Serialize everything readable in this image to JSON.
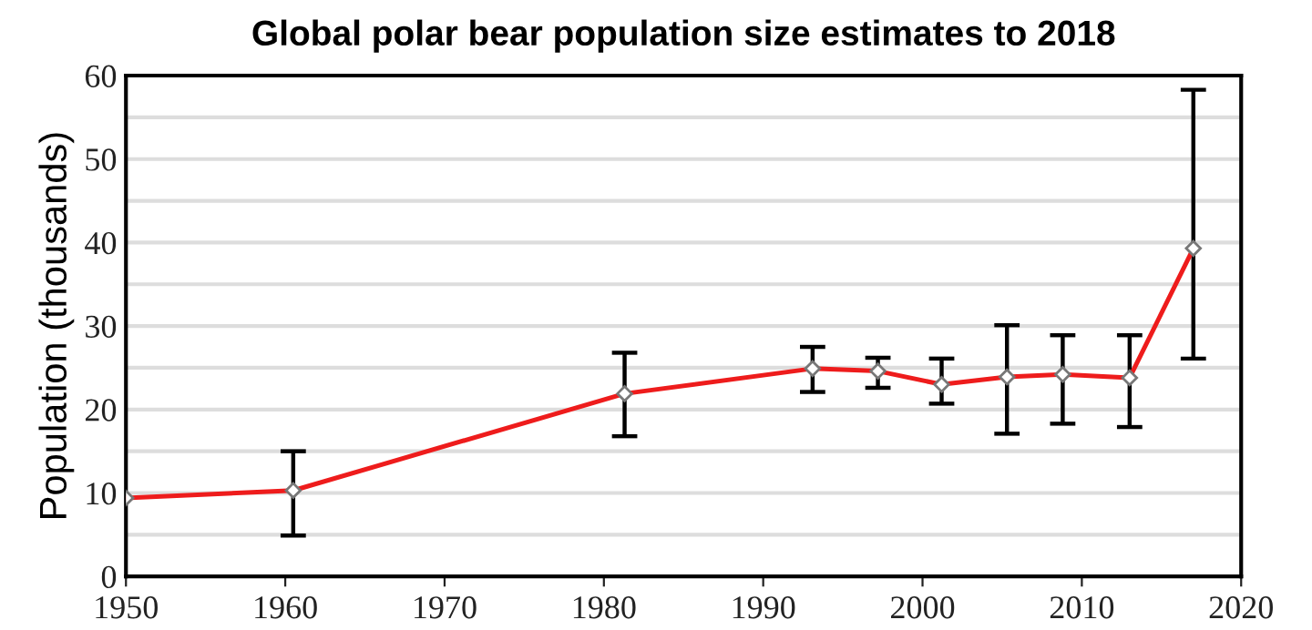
{
  "chart_data": {
    "type": "line",
    "title": "Global polar bear population size estimates to 2018",
    "ylabel": "Population (thousands)",
    "x": [
      1950,
      1960.5,
      1981.3,
      1993.1,
      1997.2,
      2001.2,
      2005.3,
      2008.8,
      2013.0,
      2017.0
    ],
    "series": [
      {
        "color": "#ee1c1c",
        "values": [
          9.4,
          10.3,
          21.9,
          24.9,
          24.6,
          23.0,
          23.9,
          24.2,
          23.8,
          39.3
        ],
        "errors": [
          null,
          [
            4.9,
            15.0
          ],
          [
            16.8,
            26.8
          ],
          [
            22.1,
            27.5
          ],
          [
            22.6,
            26.2
          ],
          [
            20.7,
            26.1
          ],
          [
            17.1,
            30.1
          ],
          [
            18.3,
            28.9
          ],
          [
            17.9,
            28.9
          ],
          [
            26.1,
            58.3
          ]
        ]
      }
    ],
    "marker": "diamond",
    "line_style": "solid",
    "xlim": [
      1950,
      2020
    ],
    "xticks": [
      1950,
      1960,
      1970,
      1980,
      1990,
      2000,
      2010,
      2020
    ],
    "ylim": [
      0,
      60
    ],
    "yticks": [
      0,
      {
        "value": 5,
        "label": null
      },
      10,
      {
        "value": 15,
        "label": null
      },
      20,
      {
        "value": 25,
        "label": null
      },
      30,
      {
        "value": 35,
        "label": null
      },
      40,
      {
        "value": 45,
        "label": null
      },
      50,
      {
        "value": 55,
        "label": null
      },
      60
    ],
    "grid": "y"
  }
}
